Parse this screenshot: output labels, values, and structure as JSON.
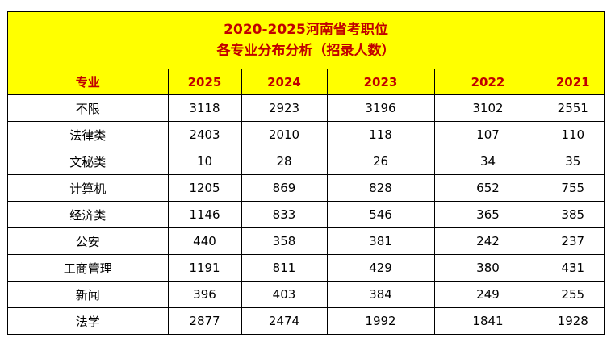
{
  "title": {
    "line1": "2020-2025河南省考职位",
    "line2": "各专业分布分析（招录人数）"
  },
  "colors": {
    "header_bg": "#ffff00",
    "header_text": "#c00000"
  },
  "table": {
    "headers": [
      "专业",
      "2025",
      "2024",
      "2023",
      "2022",
      "2021"
    ],
    "rows": [
      [
        "不限",
        "3118",
        "2923",
        "3196",
        "3102",
        "2551"
      ],
      [
        "法律类",
        "2403",
        "2010",
        "118",
        "107",
        "110"
      ],
      [
        "文秘类",
        "10",
        "28",
        "26",
        "34",
        "35"
      ],
      [
        "计算机",
        "1205",
        "869",
        "828",
        "652",
        "755"
      ],
      [
        "经济类",
        "1146",
        "833",
        "546",
        "365",
        "385"
      ],
      [
        "公安",
        "440",
        "358",
        "381",
        "242",
        "237"
      ],
      [
        "工商管理",
        "1191",
        "811",
        "429",
        "380",
        "431"
      ],
      [
        "新闻",
        "396",
        "403",
        "384",
        "249",
        "255"
      ],
      [
        "法学",
        "2877",
        "2474",
        "1992",
        "1841",
        "1928"
      ]
    ]
  }
}
